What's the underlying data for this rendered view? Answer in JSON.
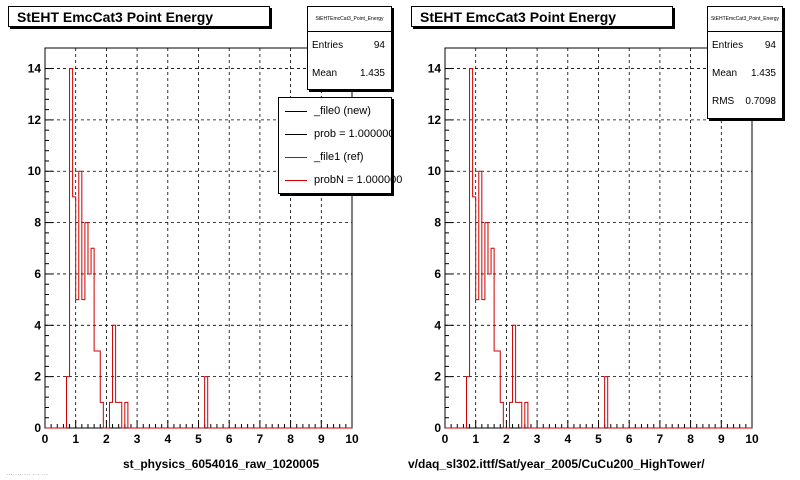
{
  "canvas_title_left": "StEHT EmcCat3 Point Energy",
  "canvas_title_right": "StEHT EmcCat3 Point Energy",
  "stats_left": {
    "name": "StEHTEmcCat3_Point_Energy",
    "entries_label": "Entries",
    "entries_value": "94",
    "mean_label": "Mean",
    "mean_value": "1.435"
  },
  "stats_right": {
    "name": "StEHTEmcCat3_Point_Energy",
    "entries_label": "Entries",
    "entries_value": "94",
    "mean_label": "Mean",
    "mean_value": "1.435",
    "rms_label": "RMS",
    "rms_value": "0.7098"
  },
  "legend_left": {
    "entries": [
      {
        "label": "_file0 (new)",
        "color": "#000000"
      },
      {
        "label": "prob = 1.000000",
        "color": "#000000"
      },
      {
        "label": "_file1 (ref)",
        "color": "#cc0000"
      },
      {
        "label": "probN = 1.000000",
        "color": "#cc0000"
      }
    ]
  },
  "xtitle_left": "st_physics_6054016_raw_1020005",
  "xtitle_right": "v/daq_sl302.ittf/Sat/year_2005/CuCu200_HighTower/",
  "footer_faint": "... ... ... ... ...",
  "chart_data": [
    {
      "type": "line",
      "step": true,
      "title": "StEHT EmcCat3 Point Energy",
      "xlabel": "st_physics_6054016_raw_1020005",
      "xlim": [
        0,
        10
      ],
      "ylim": [
        0,
        14.8
      ],
      "xticks": [
        0,
        1,
        2,
        3,
        4,
        5,
        6,
        7,
        8,
        9,
        10
      ],
      "yticks": [
        0,
        2,
        4,
        6,
        8,
        10,
        12,
        14
      ],
      "grid": true,
      "line_color": "#cc0000",
      "bin_width": 0.1,
      "x": [
        0.7,
        0.8,
        0.9,
        1.0,
        1.1,
        1.2,
        1.3,
        1.4,
        1.5,
        1.6,
        1.7,
        1.8,
        1.9,
        2.0,
        2.1,
        2.2,
        2.3,
        2.4,
        2.5,
        2.6,
        2.7,
        5.2
      ],
      "y": [
        2,
        14,
        9,
        5,
        10,
        5,
        8,
        6,
        7,
        3,
        3,
        1,
        0,
        0,
        1,
        4,
        1,
        1,
        0,
        1,
        0,
        2
      ]
    },
    {
      "type": "line",
      "step": true,
      "title": "StEHT EmcCat3 Point Energy",
      "xlabel": "v/daq_sl302.ittf/Sat/year_2005/CuCu200_HighTower/",
      "xlim": [
        0,
        10
      ],
      "ylim": [
        0,
        14.8
      ],
      "xticks": [
        0,
        1,
        2,
        3,
        4,
        5,
        6,
        7,
        8,
        9,
        10
      ],
      "yticks": [
        0,
        2,
        4,
        6,
        8,
        10,
        12,
        14
      ],
      "grid": true,
      "line_color": "#cc0000",
      "bin_width": 0.1,
      "x": [
        0.7,
        0.8,
        0.9,
        1.0,
        1.1,
        1.2,
        1.3,
        1.4,
        1.5,
        1.6,
        1.7,
        1.8,
        1.9,
        2.0,
        2.1,
        2.2,
        2.3,
        2.4,
        2.5,
        2.6,
        2.7,
        5.2
      ],
      "y": [
        2,
        14,
        9,
        5,
        10,
        5,
        8,
        6,
        7,
        3,
        3,
        1,
        0,
        0,
        1,
        4,
        1,
        1,
        0,
        1,
        0,
        2
      ]
    }
  ]
}
